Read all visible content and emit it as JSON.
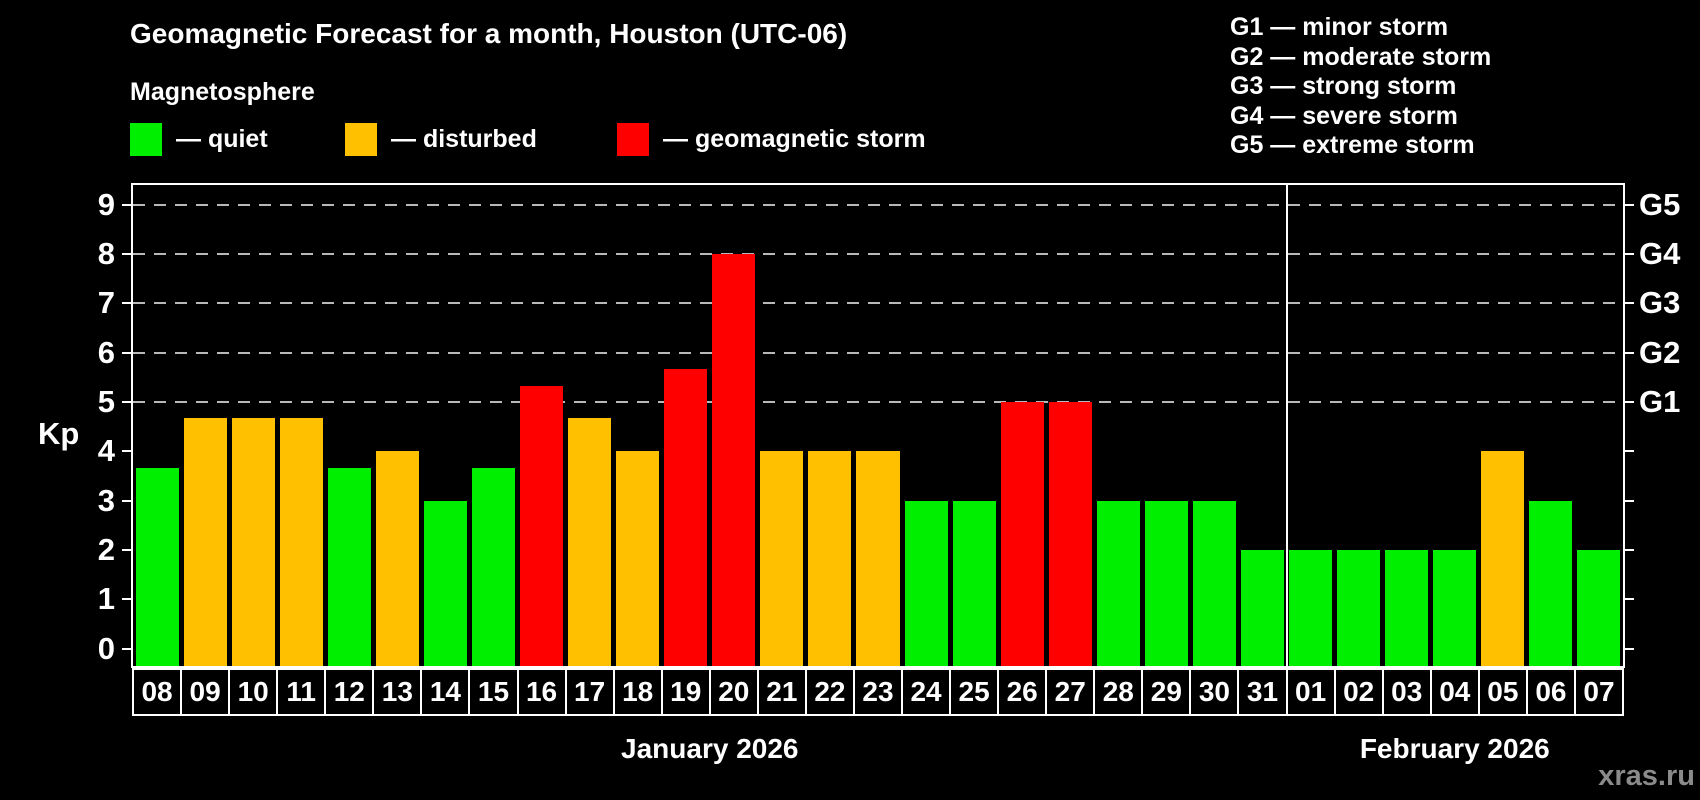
{
  "header": {
    "title": "Geomagnetic Forecast for a month, Houston (UTC-06)",
    "subtitle": "Magnetosphere"
  },
  "legend": {
    "items": [
      {
        "key": "quiet",
        "label": "— quiet",
        "color": "#00ee00"
      },
      {
        "key": "disturbed",
        "label": "— disturbed",
        "color": "#ffc000"
      },
      {
        "key": "storm",
        "label": "— geomagnetic storm",
        "color": "#ff0000"
      }
    ]
  },
  "g_legend": {
    "items": [
      {
        "code": "G1",
        "label": "G1 — minor storm"
      },
      {
        "code": "G2",
        "label": "G2 — moderate storm"
      },
      {
        "code": "G3",
        "label": "G3 — strong storm"
      },
      {
        "code": "G4",
        "label": "G4 — severe storm"
      },
      {
        "code": "G5",
        "label": "G5 — extreme storm"
      }
    ]
  },
  "axes": {
    "y_title": "Kp",
    "y_ticks": [
      0,
      1,
      2,
      3,
      4,
      5,
      6,
      7,
      8,
      9
    ],
    "right_labels": [
      {
        "label": "G1",
        "kp": 5
      },
      {
        "label": "G2",
        "kp": 6
      },
      {
        "label": "G3",
        "kp": 7
      },
      {
        "label": "G4",
        "kp": 8
      },
      {
        "label": "G5",
        "kp": 9
      }
    ]
  },
  "watermark": "xras.ru",
  "chart_data": {
    "type": "bar",
    "title": "Geomagnetic Forecast for a month, Houston (UTC-06)",
    "ylabel": "Kp",
    "ylim": [
      0,
      9
    ],
    "grid_levels_kp": [
      5,
      6,
      7,
      8,
      9
    ],
    "legend_position": "top-left",
    "status_colors": {
      "quiet": "#00ee00",
      "disturbed": "#ffc000",
      "storm": "#ff0000"
    },
    "months": [
      {
        "label": "January 2026",
        "days": [
          {
            "date": "08",
            "kp": 3.67,
            "status": "quiet"
          },
          {
            "date": "09",
            "kp": 4.67,
            "status": "disturbed"
          },
          {
            "date": "10",
            "kp": 4.67,
            "status": "disturbed"
          },
          {
            "date": "11",
            "kp": 4.67,
            "status": "disturbed"
          },
          {
            "date": "12",
            "kp": 3.67,
            "status": "quiet"
          },
          {
            "date": "13",
            "kp": 4.0,
            "status": "disturbed"
          },
          {
            "date": "14",
            "kp": 3.0,
            "status": "quiet"
          },
          {
            "date": "15",
            "kp": 3.67,
            "status": "quiet"
          },
          {
            "date": "16",
            "kp": 5.33,
            "status": "storm"
          },
          {
            "date": "17",
            "kp": 4.67,
            "status": "disturbed"
          },
          {
            "date": "18",
            "kp": 4.0,
            "status": "disturbed"
          },
          {
            "date": "19",
            "kp": 5.67,
            "status": "storm"
          },
          {
            "date": "20",
            "kp": 8.0,
            "status": "storm"
          },
          {
            "date": "21",
            "kp": 4.0,
            "status": "disturbed"
          },
          {
            "date": "22",
            "kp": 4.0,
            "status": "disturbed"
          },
          {
            "date": "23",
            "kp": 4.0,
            "status": "disturbed"
          },
          {
            "date": "24",
            "kp": 3.0,
            "status": "quiet"
          },
          {
            "date": "25",
            "kp": 3.0,
            "status": "quiet"
          },
          {
            "date": "26",
            "kp": 5.0,
            "status": "storm"
          },
          {
            "date": "27",
            "kp": 5.0,
            "status": "storm"
          },
          {
            "date": "28",
            "kp": 3.0,
            "status": "quiet"
          },
          {
            "date": "29",
            "kp": 3.0,
            "status": "quiet"
          },
          {
            "date": "30",
            "kp": 3.0,
            "status": "quiet"
          },
          {
            "date": "31",
            "kp": 2.0,
            "status": "quiet"
          }
        ]
      },
      {
        "label": "February 2026",
        "days": [
          {
            "date": "01",
            "kp": 2.0,
            "status": "quiet"
          },
          {
            "date": "02",
            "kp": 2.0,
            "status": "quiet"
          },
          {
            "date": "03",
            "kp": 2.0,
            "status": "quiet"
          },
          {
            "date": "04",
            "kp": 2.0,
            "status": "quiet"
          },
          {
            "date": "05",
            "kp": 4.0,
            "status": "disturbed"
          },
          {
            "date": "06",
            "kp": 3.0,
            "status": "quiet"
          },
          {
            "date": "07",
            "kp": 2.0,
            "status": "quiet"
          }
        ]
      }
    ]
  }
}
